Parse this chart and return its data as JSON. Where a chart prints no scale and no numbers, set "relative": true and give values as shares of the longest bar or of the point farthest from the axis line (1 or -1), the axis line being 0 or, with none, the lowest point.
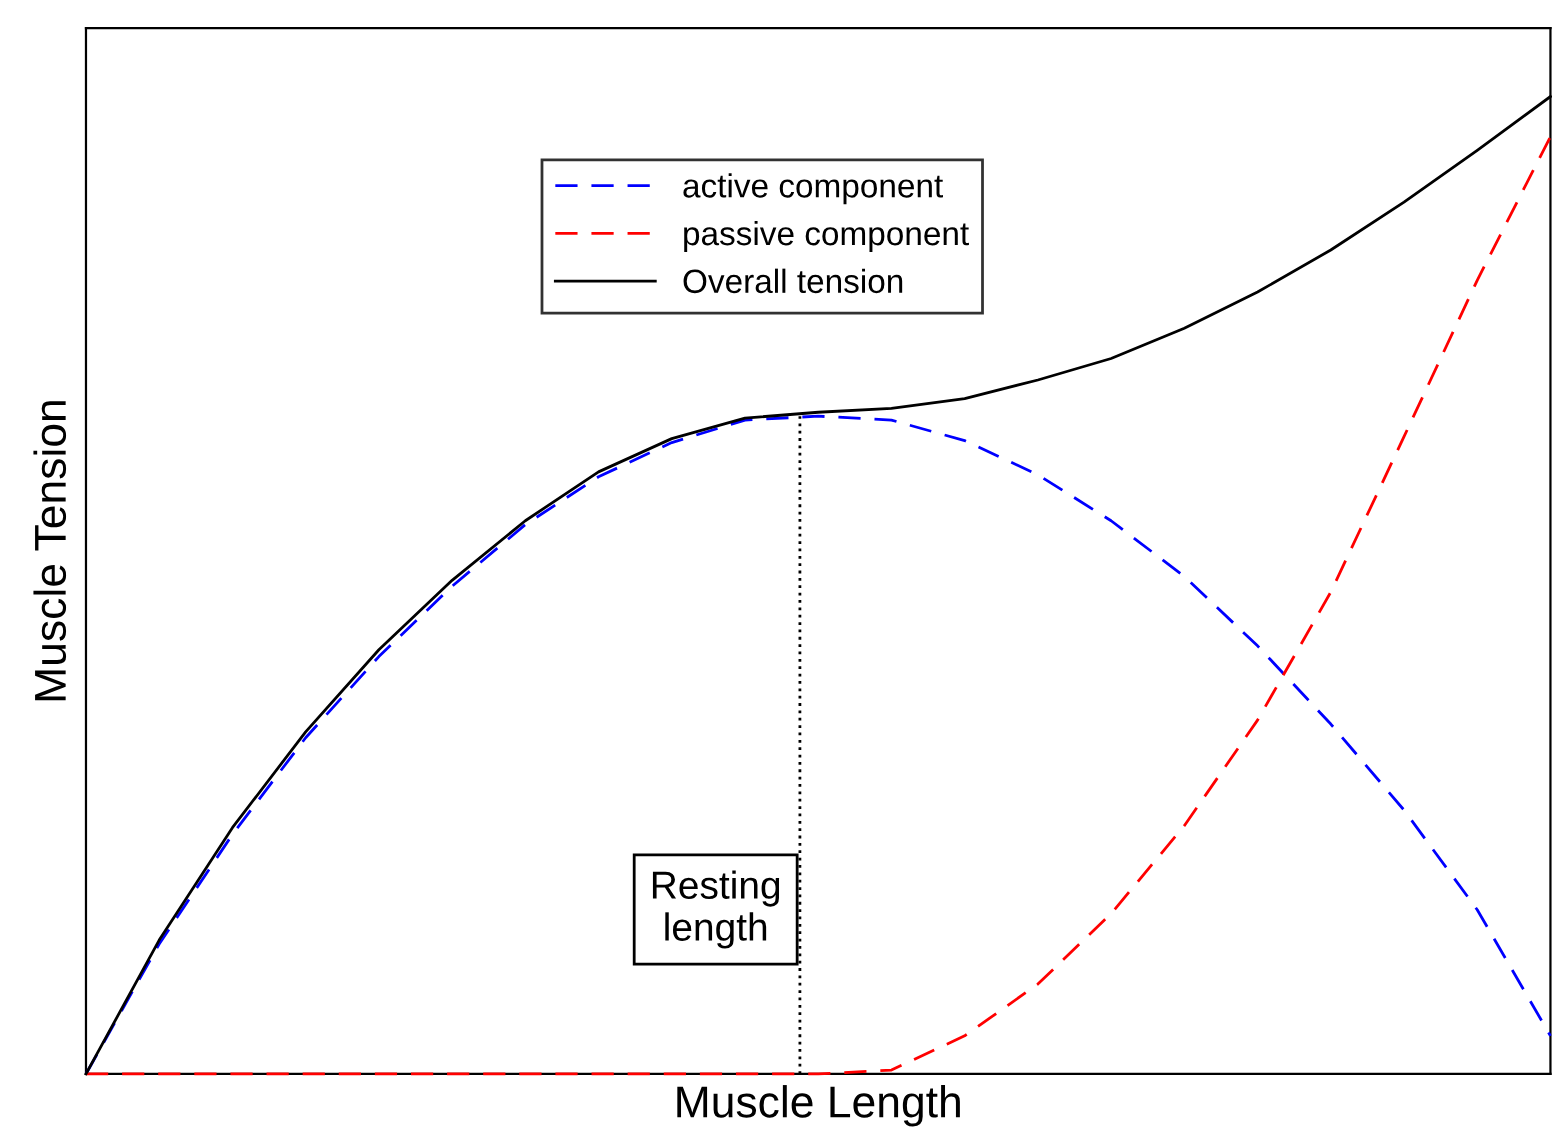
{
  "chart_data": {
    "type": "line",
    "relative": true,
    "xlabel": "Muscle Length",
    "ylabel": "Muscle Tension",
    "categories": [
      null,
      null,
      null,
      null,
      null,
      null,
      null,
      null,
      null,
      null,
      null,
      null,
      null,
      null,
      null,
      null,
      null,
      null,
      null,
      null,
      null
    ],
    "series": [
      {
        "name": "active component",
        "color": "#0000ff",
        "line_style": "dashed",
        "values": [
          0,
          0.133,
          0.245,
          0.344,
          0.427,
          0.499,
          0.562,
          0.611,
          0.646,
          0.669,
          0.673,
          0.669,
          0.648,
          0.613,
          0.566,
          0.509,
          0.438,
          0.358,
          0.27,
          0.168,
          0.039
        ]
      },
      {
        "name": "passive component",
        "color": "#ff0000",
        "line_style": "dashed",
        "values": [
          0,
          0,
          0,
          0,
          0,
          0,
          0,
          0,
          0,
          0,
          0,
          0.004,
          0.039,
          0.092,
          0.164,
          0.254,
          0.362,
          0.493,
          0.652,
          0.812,
          0.959
        ]
      },
      {
        "name": "Overall tension",
        "color": "#000000",
        "line_style": "solid",
        "values": [
          0,
          0.137,
          0.252,
          0.35,
          0.434,
          0.505,
          0.566,
          0.616,
          0.65,
          0.671,
          0.677,
          0.681,
          0.691,
          0.71,
          0.732,
          0.763,
          0.8,
          0.843,
          0.892,
          0.945,
          1
        ]
      }
    ],
    "annotations": [
      "Resting length"
    ],
    "legend": "top left"
  }
}
